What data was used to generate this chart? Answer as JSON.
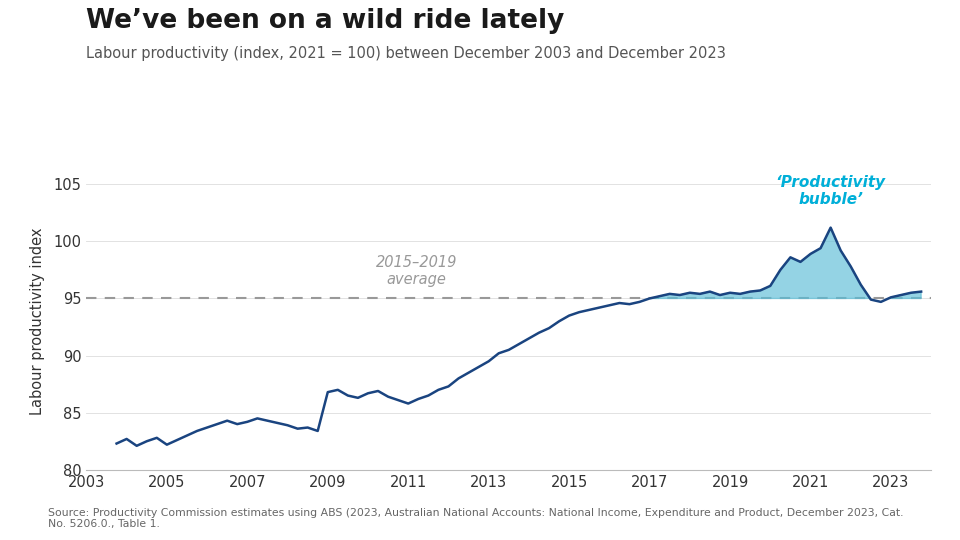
{
  "title": "We’ve been on a wild ride lately",
  "subtitle": "Labour productivity (index, 2021 = 100) between December 2003 and December 2023",
  "ylabel": "Labour productivity index",
  "source": "Source: Productivity Commission estimates using ABS (2023, Australian National Accounts: National Income, Expenditure and Product, December 2023, Cat.\nNo. 5206.0., Table 1.",
  "avg_label": "2015–2019\naverage",
  "avg_value": 95.0,
  "bubble_label": "‘Productivity\nbubble’",
  "line_color": "#1a4480",
  "fill_color": "#5bbcd6",
  "fill_alpha": 0.65,
  "avg_line_color": "#999999",
  "bubble_label_color": "#00afd8",
  "title_color": "#1a1a1a",
  "subtitle_color": "#555555",
  "background_color": "#ffffff",
  "ylim": [
    80,
    106
  ],
  "yticks": [
    80,
    85,
    90,
    95,
    100,
    105
  ],
  "xlim": [
    2003,
    2024
  ],
  "xticks": [
    2003,
    2005,
    2007,
    2009,
    2011,
    2013,
    2015,
    2017,
    2019,
    2021,
    2023
  ],
  "years": [
    2003.75,
    2004.0,
    2004.25,
    2004.5,
    2004.75,
    2005.0,
    2005.25,
    2005.5,
    2005.75,
    2006.0,
    2006.25,
    2006.5,
    2006.75,
    2007.0,
    2007.25,
    2007.5,
    2007.75,
    2008.0,
    2008.25,
    2008.5,
    2008.75,
    2009.0,
    2009.25,
    2009.5,
    2009.75,
    2010.0,
    2010.25,
    2010.5,
    2010.75,
    2011.0,
    2011.25,
    2011.5,
    2011.75,
    2012.0,
    2012.25,
    2012.5,
    2012.75,
    2013.0,
    2013.25,
    2013.5,
    2013.75,
    2014.0,
    2014.25,
    2014.5,
    2014.75,
    2015.0,
    2015.25,
    2015.5,
    2015.75,
    2016.0,
    2016.25,
    2016.5,
    2016.75,
    2017.0,
    2017.25,
    2017.5,
    2017.75,
    2018.0,
    2018.25,
    2018.5,
    2018.75,
    2019.0,
    2019.25,
    2019.5,
    2019.75,
    2020.0,
    2020.25,
    2020.5,
    2020.75,
    2021.0,
    2021.25,
    2021.5,
    2021.75,
    2022.0,
    2022.25,
    2022.5,
    2022.75,
    2023.0,
    2023.25,
    2023.5,
    2023.75
  ],
  "values": [
    82.3,
    82.7,
    82.1,
    82.5,
    82.8,
    82.2,
    82.6,
    83.0,
    83.4,
    83.7,
    84.0,
    84.3,
    84.0,
    84.2,
    84.5,
    84.3,
    84.1,
    83.9,
    83.6,
    83.7,
    83.4,
    86.8,
    87.0,
    86.5,
    86.3,
    86.7,
    86.9,
    86.4,
    86.1,
    85.8,
    86.2,
    86.5,
    87.0,
    87.3,
    88.0,
    88.5,
    89.0,
    89.5,
    90.2,
    90.5,
    91.0,
    91.5,
    92.0,
    92.4,
    93.0,
    93.5,
    93.8,
    94.0,
    94.2,
    94.4,
    94.6,
    94.5,
    94.7,
    95.0,
    95.2,
    95.4,
    95.3,
    95.5,
    95.4,
    95.6,
    95.3,
    95.5,
    95.4,
    95.6,
    95.7,
    96.1,
    97.5,
    98.6,
    98.2,
    98.9,
    99.4,
    101.2,
    99.2,
    97.8,
    96.2,
    94.9,
    94.7,
    95.1,
    95.3,
    95.5,
    95.6
  ]
}
